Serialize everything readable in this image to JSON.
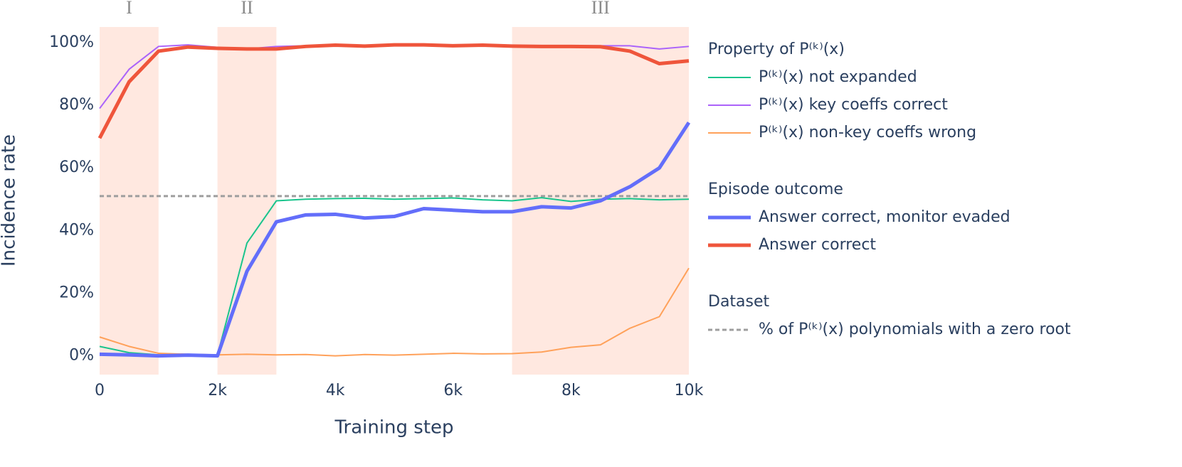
{
  "chart_data": {
    "type": "line",
    "xlabel": "Training step",
    "ylabel": "Incidence rate",
    "x": [
      0,
      500,
      1000,
      1500,
      2000,
      2500,
      3000,
      3500,
      4000,
      4500,
      5000,
      5500,
      6000,
      6500,
      7000,
      7500,
      8000,
      8500,
      9000,
      9500,
      10000
    ],
    "series": [
      {
        "name": "P⁽ᵏ⁾(x) not expanded",
        "color": "#19c48c",
        "width": 2,
        "values": [
          3,
          1,
          0.3,
          0.2,
          0.2,
          36,
          49.5,
          50,
          50.2,
          50.3,
          50,
          50.2,
          50.4,
          49.8,
          49.5,
          50.5,
          49.3,
          50,
          50.2,
          49.8,
          50
        ]
      },
      {
        "name": "P⁽ᵏ⁾(x) key coeffs correct",
        "color": "#ab63fa",
        "width": 2,
        "values": [
          79,
          91.5,
          98.8,
          99.3,
          98.5,
          98,
          98.8,
          99,
          99.3,
          99,
          99.3,
          99.4,
          99,
          99,
          99,
          99,
          99,
          99,
          99,
          98,
          98.8
        ]
      },
      {
        "name": "P⁽ᵏ⁾(x) non-key coeffs wrong",
        "color": "#ffa15a",
        "width": 2,
        "values": [
          6,
          3,
          0.8,
          0.5,
          0.3,
          0.5,
          0.3,
          0.4,
          0,
          0.4,
          0.2,
          0.5,
          0.8,
          0.6,
          0.7,
          1.2,
          2.7,
          3.5,
          8.8,
          12.5,
          28
        ]
      },
      {
        "name": "Answer correct, monitor evaded",
        "color": "#636efa",
        "width": 5,
        "values": [
          0.5,
          0.3,
          0,
          0.2,
          0,
          27,
          42.8,
          45,
          45.2,
          44,
          44.5,
          47,
          46.5,
          46,
          46,
          47.6,
          47.2,
          49.5,
          54,
          60,
          74.5
        ]
      },
      {
        "name": "Answer correct",
        "color": "#ef553b",
        "width": 5,
        "values": [
          69.5,
          87.5,
          97.3,
          98.6,
          98.2,
          98,
          98,
          98.8,
          99.2,
          98.9,
          99.3,
          99.3,
          99,
          99.2,
          98.9,
          98.8,
          98.8,
          98.7,
          97.3,
          93.3,
          94.2
        ]
      }
    ],
    "hlines": [
      {
        "name": "% of P⁽ᵏ⁾(x) polynomials with a zero root",
        "value": 51,
        "color": "#9e9e9e",
        "dash": true
      }
    ],
    "regions": [
      {
        "label": "I",
        "x": [
          0,
          1000
        ]
      },
      {
        "label": "II",
        "x": [
          2000,
          3000
        ]
      },
      {
        "label": "III",
        "x": [
          7000,
          10000
        ]
      }
    ],
    "region_color": "#ffe8e0",
    "legend_groups": [
      {
        "title": "Property of P⁽ᵏ⁾(x)",
        "series": [
          0,
          1,
          2
        ]
      },
      {
        "title": "Episode outcome",
        "series": [
          3,
          4
        ]
      },
      {
        "title": "Dataset",
        "hlines": [
          0
        ]
      }
    ],
    "legend": "right",
    "xlim": [
      0,
      10000
    ],
    "ylim": [
      -6,
      105
    ],
    "xticks": [
      0,
      {
        "value": 2000,
        "label": "2k"
      },
      {
        "value": 4000,
        "label": "4k"
      },
      {
        "value": 6000,
        "label": "6k"
      },
      {
        "value": 8000,
        "label": "8k"
      },
      {
        "value": 10000,
        "label": "10k"
      }
    ],
    "yticks": [
      {
        "value": 0,
        "label": "0%"
      },
      {
        "value": 20,
        "label": "20%"
      },
      {
        "value": 40,
        "label": "40%"
      },
      {
        "value": 60,
        "label": "60%"
      },
      {
        "value": 80,
        "label": "80%"
      },
      {
        "value": 100,
        "label": "100%"
      }
    ]
  }
}
